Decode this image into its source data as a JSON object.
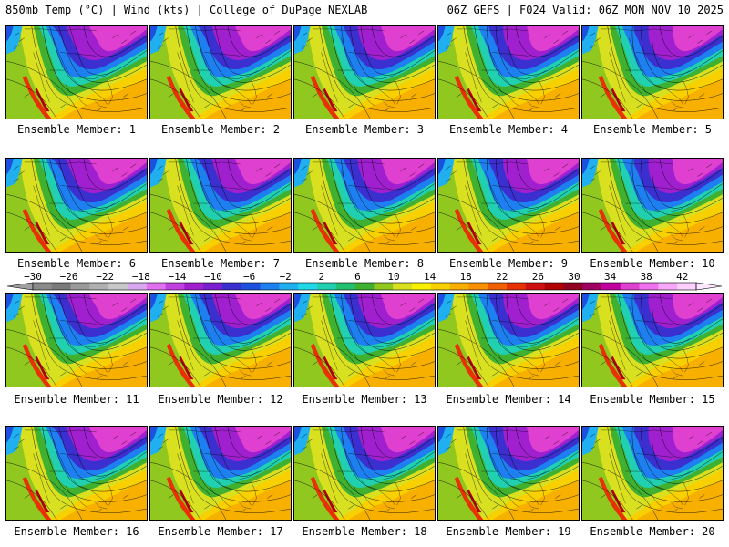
{
  "header": {
    "left": "850mb Temp (°C) | Wind (kts) | College of DuPage NEXLAB",
    "right": "06Z GEFS | F024 Valid: 06Z MON NOV 10 2025"
  },
  "members": [
    "Ensemble Member: 1",
    "Ensemble Member: 2",
    "Ensemble Member: 3",
    "Ensemble Member: 4",
    "Ensemble Member: 5",
    "Ensemble Member: 6",
    "Ensemble Member: 7",
    "Ensemble Member: 8",
    "Ensemble Member: 9",
    "Ensemble Member: 10",
    "Ensemble Member: 11",
    "Ensemble Member: 12",
    "Ensemble Member: 13",
    "Ensemble Member: 14",
    "Ensemble Member: 15",
    "Ensemble Member: 16",
    "Ensemble Member: 17",
    "Ensemble Member: 18",
    "Ensemble Member: 19",
    "Ensemble Member: 20"
  ],
  "colorbar": {
    "ticks": [
      "−30",
      "−26",
      "−22",
      "−18",
      "−14",
      "−10",
      "−6",
      "−2",
      "2",
      "6",
      "10",
      "14",
      "18",
      "22",
      "26",
      "30",
      "34",
      "38",
      "42"
    ],
    "colors": [
      "#8a8a8a",
      "#7a7a7a",
      "#9a9a9a",
      "#b0b0b0",
      "#c8c8c8",
      "#d8a8f0",
      "#e070f0",
      "#c040e0",
      "#a020d0",
      "#7a1fd0",
      "#3b2fd0",
      "#1e50e0",
      "#1e7ff0",
      "#20b0f0",
      "#20d8e8",
      "#20d0b0",
      "#20c070",
      "#40b030",
      "#90c820",
      "#d8e020",
      "#f8f000",
      "#f8d000",
      "#f8b000",
      "#f89000",
      "#f06000",
      "#e83000",
      "#d01010",
      "#b00000",
      "#900020",
      "#a00060",
      "#c000a0",
      "#e040d0",
      "#f070f0",
      "#f8a8f8",
      "#ffd0ff"
    ]
  }
}
